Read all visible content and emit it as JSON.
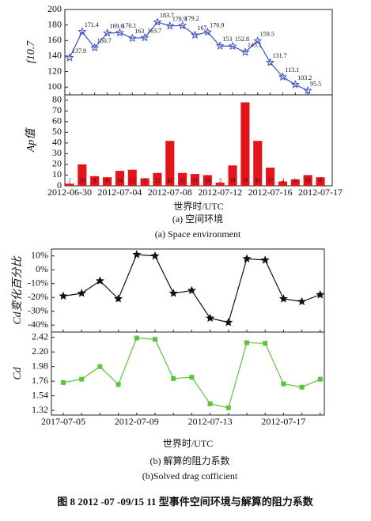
{
  "chart_data": [
    {
      "type": "line",
      "ylabel": "f10.7",
      "color": "#3b4fc4",
      "marker": "star",
      "ylim": [
        90,
        200
      ],
      "yticks": [
        100,
        120,
        140,
        160,
        180,
        200
      ],
      "values": [
        137.9,
        171.4,
        150.7,
        169.6,
        170.1,
        163,
        163.7,
        183.7,
        178.9,
        179.2,
        167,
        170.9,
        153,
        152.8,
        145.1,
        159.5,
        131.7,
        113.1,
        103.2,
        95.5
      ]
    },
    {
      "type": "bar",
      "ylabel": "Ap值",
      "xlabel": "世界时/UTC",
      "color": "#e3141b",
      "ylim": [
        0,
        85
      ],
      "yticks": [
        0,
        10,
        20,
        30,
        40,
        50,
        60,
        70,
        80
      ],
      "categories": [
        "2012-06-30",
        null,
        null,
        null,
        "2012-07-04",
        null,
        null,
        null,
        "2012-07-08",
        null,
        null,
        null,
        "2012-07-12",
        null,
        null,
        null,
        "2012-07-16",
        null,
        null,
        null,
        "2012-07-17"
      ],
      "values": [
        2,
        20,
        9,
        8,
        14,
        15,
        7,
        12,
        42,
        12,
        11,
        10,
        3,
        19,
        78,
        42,
        17,
        4,
        6,
        10,
        8
      ]
    },
    {
      "type": "line",
      "ylabel": "Cd变化百分比",
      "color": "#111111",
      "marker": "star",
      "ylim": [
        -45,
        15
      ],
      "yticks": [
        {
          "value": 10,
          "label": "10%"
        },
        {
          "value": 0,
          "label": "0%"
        },
        {
          "value": -10,
          "label": "-10%"
        },
        {
          "value": -20,
          "label": "-20%"
        },
        {
          "value": -30,
          "label": "-30%"
        },
        {
          "value": -40,
          "label": "-40%"
        }
      ],
      "values": [
        -19,
        -17,
        -8,
        -21,
        11,
        10,
        -17,
        -15,
        -35,
        -38,
        8,
        7,
        -21,
        -23,
        -18
      ]
    },
    {
      "type": "line",
      "ylabel": "Cd",
      "xlabel": "世界时/UTC",
      "color": "#5cc43a",
      "marker": "square",
      "ylim": [
        1.25,
        2.5
      ],
      "yticks": [
        1.32,
        1.54,
        1.76,
        1.98,
        {
          "value": 2.2,
          "label": "2.20"
        },
        2.42
      ],
      "categories": [
        "2017-07-05",
        null,
        null,
        null,
        "2012-07-09",
        null,
        null,
        null,
        "2012-07-13",
        null,
        null,
        null,
        "2012-07-17",
        null,
        null
      ],
      "values": [
        1.74,
        1.79,
        1.98,
        1.71,
        2.41,
        2.39,
        1.8,
        1.82,
        1.42,
        1.36,
        2.34,
        2.33,
        1.72,
        1.67,
        1.79
      ]
    }
  ],
  "captions": {
    "a_cn": "(a) 空间环境",
    "a_en": "(a) Space environment",
    "b_cn": "(b) 解算的阻力系数",
    "b_en": "(b)Solved drag cofficient",
    "figure": "图 8 2012 -07 -09/15 11 型事件空间环境与解算的阻力系数"
  }
}
